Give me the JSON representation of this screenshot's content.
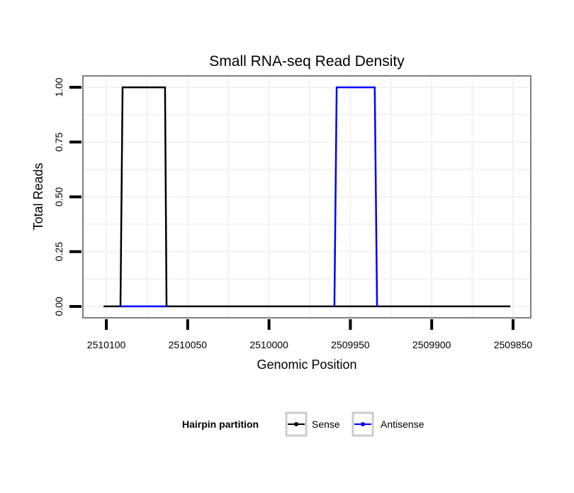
{
  "chart_data": {
    "type": "line",
    "title": "Small RNA-seq Read Density",
    "xlabel": "Genomic Position",
    "ylabel": "Total Reads",
    "xlim": [
      2510114.4,
      2509839.1
    ],
    "ylim": [
      -0.052,
      1.052
    ],
    "x_reversed": true,
    "xticks": [
      2510100,
      2510050,
      2510000,
      2509950,
      2509900,
      2509850
    ],
    "xtick_labels": [
      "2510100",
      "2510050",
      "2510000",
      "2509950",
      "2509900",
      "2509850"
    ],
    "yticks": [
      0,
      0.25,
      0.5,
      0.75,
      1
    ],
    "ytick_labels": [
      "0.00",
      "0.25",
      "0.50",
      "0.75",
      "1.00"
    ],
    "grid": true,
    "legend": {
      "title": "Hairpin partition",
      "position": "bottom"
    },
    "series": [
      {
        "name": "Sense",
        "color": "#000000",
        "x": [
          2510101.7,
          2510091.3,
          2510090,
          2510063.9,
          2510063,
          2509851.7
        ],
        "y": [
          0,
          0,
          1,
          1,
          0,
          0
        ]
      },
      {
        "name": "Antisense",
        "color": "#0000ff",
        "x": [
          2510091.3,
          2510063,
          null,
          2509959.8,
          2509958.4,
          2509935,
          2509933.6
        ],
        "y": [
          0,
          0,
          null,
          0,
          1,
          1,
          0
        ]
      }
    ]
  }
}
